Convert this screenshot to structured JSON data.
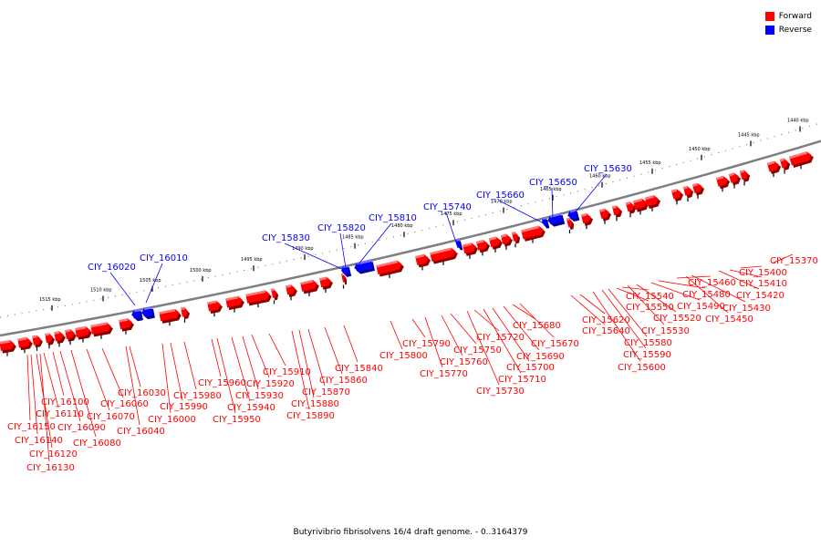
{
  "caption": "Butyrivibrio fibrisolvens 16/4 draft genome. - 0..3164379",
  "legend": [
    {
      "label": "Forward",
      "color": "#ff0000"
    },
    {
      "label": "Reverse",
      "color": "#0000ff"
    }
  ],
  "colors": {
    "forward": "#ff0000",
    "reverse": "#0000ff",
    "backbone": "#7f7f7f"
  },
  "tick_labels": [
    "1515 kbp",
    "1510 kbp",
    "1505 kbp",
    "1500 kbp",
    "1495 kbp",
    "1490 kbp",
    "1485 kbp",
    "1480 kbp",
    "1475 kbp",
    "1470 kbp",
    "1465 kbp",
    "1460 kbp",
    "1455 kbp",
    "1450 kbp",
    "1445 kbp",
    "1440 kbp"
  ],
  "genes_reverse": [
    "CIY_16020",
    "CIY_16010",
    "CIY_15830",
    "CIY_15820",
    "CIY_15810",
    "CIY_15740",
    "CIY_15660",
    "CIY_15650",
    "CIY_15630"
  ],
  "genes_forward": [
    "CIY_16150",
    "CIY_16140",
    "CIY_16130",
    "CIY_16120",
    "CIY_16110",
    "CIY_16100",
    "CIY_16090",
    "CIY_16080",
    "CIY_16070",
    "CIY_16060",
    "CIY_16040",
    "CIY_16030",
    "CIY_16000",
    "CIY_15990",
    "CIY_15980",
    "CIY_15960",
    "CIY_15950",
    "CIY_15940",
    "CIY_15930",
    "CIY_15920",
    "CIY_15910",
    "CIY_15890",
    "CIY_15880",
    "CIY_15870",
    "CIY_15860",
    "CIY_15840",
    "CIY_15800",
    "CIY_15790",
    "CIY_15770",
    "CIY_15760",
    "CIY_15750",
    "CIY_15730",
    "CIY_15720",
    "CIY_15710",
    "CIY_15700",
    "CIY_15690",
    "CIY_15680",
    "CIY_15670",
    "CIY_15640",
    "CIY_15620",
    "CIY_15600",
    "CIY_15590",
    "CIY_15580",
    "CIY_15550",
    "CIY_15540",
    "CIY_15530",
    "CIY_15520",
    "CIY_15490",
    "CIY_15480",
    "CIY_15460",
    "CIY_15450",
    "CIY_15430",
    "CIY_15420",
    "CIY_15410",
    "CIY_15400",
    "CIY_15370"
  ]
}
